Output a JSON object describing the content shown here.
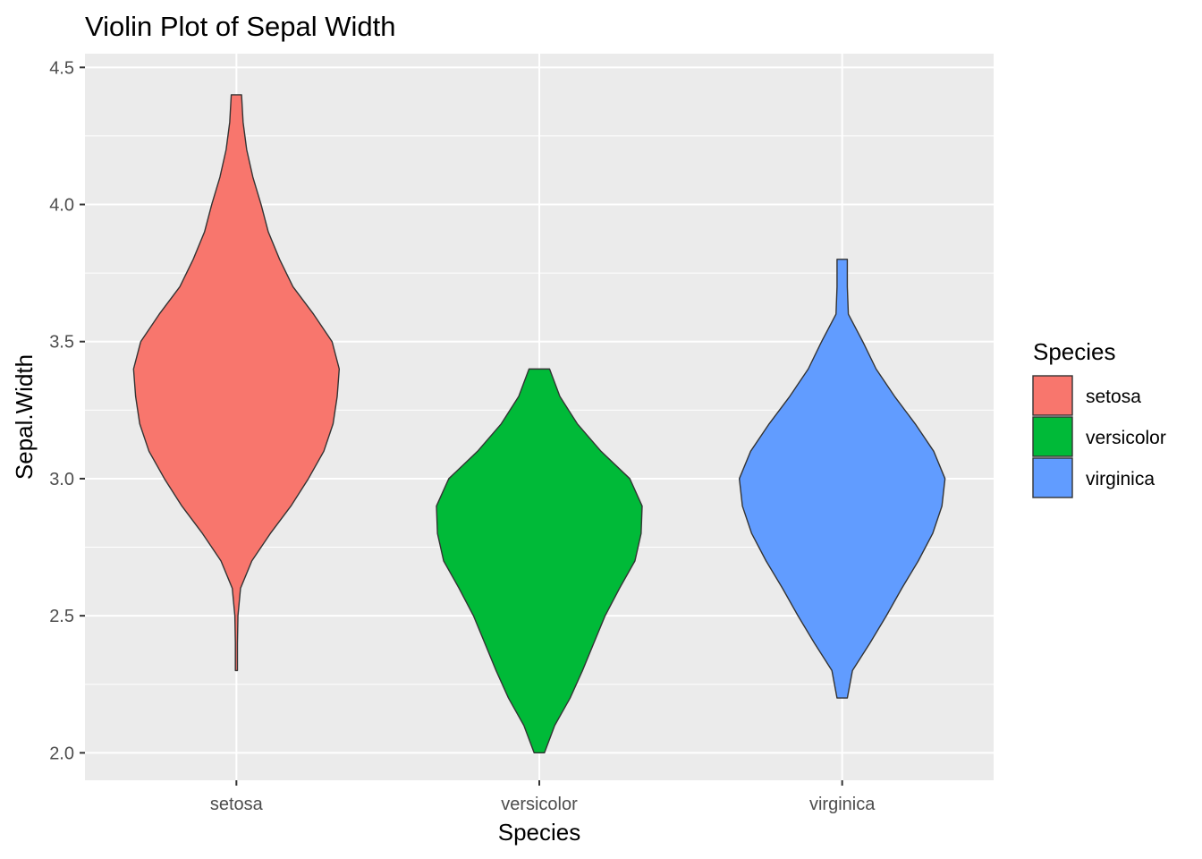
{
  "chart_data": {
    "type": "violin",
    "title": "Violin Plot of Sepal Width",
    "xlabel": "Species",
    "ylabel": "Sepal.Width",
    "ylim": [
      1.9,
      4.55
    ],
    "y_ticks": [
      "2.0",
      "2.5",
      "3.0",
      "3.5",
      "4.0",
      "4.5"
    ],
    "grid": true,
    "legend": {
      "title": "Species",
      "position": "right"
    },
    "categories": [
      "setosa",
      "versicolor",
      "virginica"
    ],
    "colors": [
      "#F8766D",
      "#00BA38",
      "#619CFF"
    ],
    "series": [
      {
        "name": "setosa",
        "min": 2.3,
        "max": 4.4,
        "density_profile": [
          [
            2.3,
            0.01
          ],
          [
            2.4,
            0.01
          ],
          [
            2.5,
            0.015
          ],
          [
            2.6,
            0.04
          ],
          [
            2.7,
            0.15
          ],
          [
            2.8,
            0.33
          ],
          [
            2.9,
            0.53
          ],
          [
            3.0,
            0.7
          ],
          [
            3.1,
            0.85
          ],
          [
            3.2,
            0.94
          ],
          [
            3.3,
            0.98
          ],
          [
            3.4,
            1.0
          ],
          [
            3.5,
            0.93
          ],
          [
            3.6,
            0.75
          ],
          [
            3.7,
            0.55
          ],
          [
            3.8,
            0.42
          ],
          [
            3.9,
            0.31
          ],
          [
            4.0,
            0.24
          ],
          [
            4.1,
            0.16
          ],
          [
            4.2,
            0.1
          ],
          [
            4.3,
            0.065
          ],
          [
            4.4,
            0.05
          ]
        ]
      },
      {
        "name": "versicolor",
        "min": 2.0,
        "max": 3.4,
        "density_profile": [
          [
            2.0,
            0.05
          ],
          [
            2.1,
            0.15
          ],
          [
            2.2,
            0.3
          ],
          [
            2.3,
            0.42
          ],
          [
            2.4,
            0.53
          ],
          [
            2.5,
            0.64
          ],
          [
            2.6,
            0.78
          ],
          [
            2.7,
            0.93
          ],
          [
            2.8,
            0.99
          ],
          [
            2.9,
            1.0
          ],
          [
            3.0,
            0.88
          ],
          [
            3.1,
            0.6
          ],
          [
            3.2,
            0.37
          ],
          [
            3.3,
            0.2
          ],
          [
            3.4,
            0.1
          ]
        ]
      },
      {
        "name": "virginica",
        "min": 2.2,
        "max": 3.8,
        "density_profile": [
          [
            2.2,
            0.05
          ],
          [
            2.3,
            0.1
          ],
          [
            2.4,
            0.27
          ],
          [
            2.5,
            0.43
          ],
          [
            2.6,
            0.58
          ],
          [
            2.7,
            0.74
          ],
          [
            2.8,
            0.88
          ],
          [
            2.9,
            0.97
          ],
          [
            3.0,
            1.0
          ],
          [
            3.1,
            0.89
          ],
          [
            3.2,
            0.71
          ],
          [
            3.3,
            0.51
          ],
          [
            3.4,
            0.33
          ],
          [
            3.5,
            0.2
          ],
          [
            3.6,
            0.06
          ],
          [
            3.7,
            0.05
          ],
          [
            3.8,
            0.05
          ]
        ]
      }
    ]
  }
}
